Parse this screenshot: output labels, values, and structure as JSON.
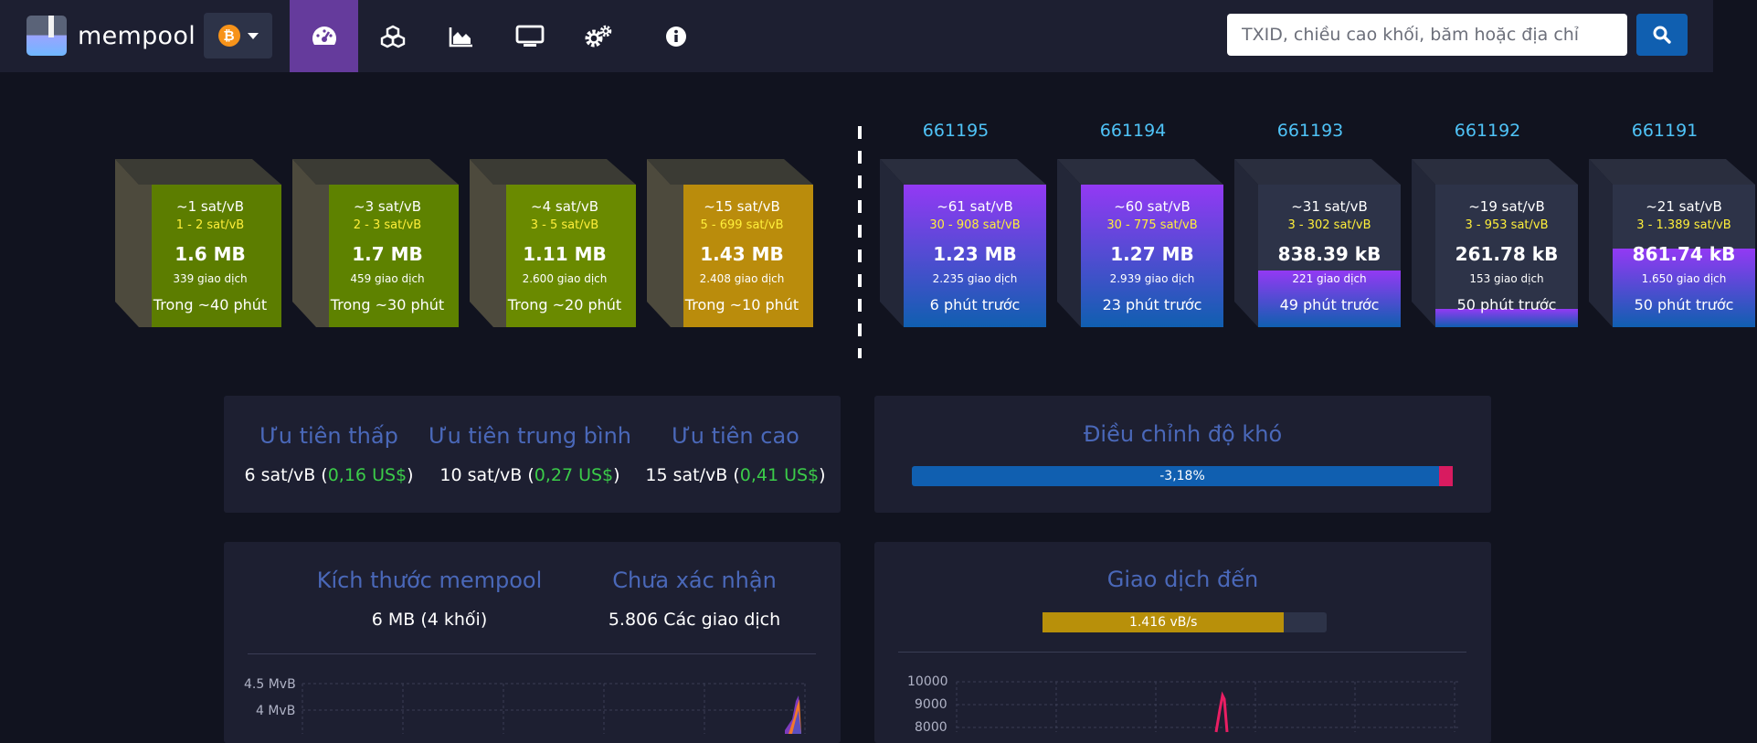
{
  "nav": {
    "logo_text": "mempool",
    "network_symbol": "₿",
    "items": [
      {
        "icon": "tachometer-icon",
        "active": true
      },
      {
        "icon": "cubes-icon",
        "active": false
      },
      {
        "icon": "area-chart-icon",
        "active": false
      },
      {
        "icon": "tv-icon",
        "active": false
      },
      {
        "icon": "cogs-icon",
        "active": false
      },
      {
        "icon": "info-circle-icon",
        "active": false
      }
    ],
    "search_placeholder": "TXID, chiều cao khối, băm hoặc địa chỉ"
  },
  "mempool_blocks": [
    {
      "fee": "~1 sat/vB",
      "range": "1 - 2 sat/vB",
      "size": "1.6 MB",
      "tx": "339 giao dịch",
      "eta": "Trong ~40 phút",
      "color": "#5c7d00",
      "fill_fraction": 1.0
    },
    {
      "fee": "~3 sat/vB",
      "range": "2 - 3 sat/vB",
      "size": "1.7 MB",
      "tx": "459 giao dịch",
      "eta": "Trong ~30 phút",
      "color": "#5e8200",
      "fill_fraction": 1.0
    },
    {
      "fee": "~4 sat/vB",
      "range": "3 - 5 sat/vB",
      "size": "1.11 MB",
      "tx": "2.600 giao dịch",
      "eta": "Trong ~20 phút",
      "color": "#6a8a00",
      "fill_fraction": 1.0
    },
    {
      "fee": "~15 sat/vB",
      "range": "5 - 699 sat/vB",
      "size": "1.43 MB",
      "tx": "2.408 giao dịch",
      "eta": "Trong ~10 phút",
      "color": "#ba8c0c",
      "fill_fraction": 1.0
    }
  ],
  "blocks": [
    {
      "height": "661195",
      "fee": "~61 sat/vB",
      "range": "30 - 908 sat/vB",
      "size": "1.23 MB",
      "tx": "2.235 giao dịch",
      "age": "6 phút trước",
      "fill_fraction": 1.0
    },
    {
      "height": "661194",
      "fee": "~60 sat/vB",
      "range": "30 - 775 sat/vB",
      "size": "1.27 MB",
      "tx": "2.939 giao dịch",
      "age": "23 phút trước",
      "fill_fraction": 1.0
    },
    {
      "height": "661193",
      "fee": "~31 sat/vB",
      "range": "3 - 302 sat/vB",
      "size": "838.39 kB",
      "tx": "221 giao dịch",
      "age": "49 phút trước",
      "fill_fraction": 0.4
    },
    {
      "height": "661192",
      "fee": "~19 sat/vB",
      "range": "3 - 953 sat/vB",
      "size": "261.78 kB",
      "tx": "153 giao dịch",
      "age": "50 phút trước",
      "fill_fraction": 0.13
    },
    {
      "height": "661191",
      "fee": "~21 sat/vB",
      "range": "3 - 1.389 sat/vB",
      "size": "861.74 kB",
      "tx": "1.650 giao dịch",
      "age": "50 phút trước",
      "fill_fraction": 0.55
    }
  ],
  "fees": {
    "low": {
      "title": "Ưu tiên thấp",
      "sat": "6 sat/vB (",
      "usd": "0,16 US$",
      "close": ")"
    },
    "mid": {
      "title": "Ưu tiên trung bình",
      "sat": "10 sat/vB (",
      "usd": "0,27 US$",
      "close": ")"
    },
    "high": {
      "title": "Ưu tiên cao",
      "sat": "15 sat/vB (",
      "usd": "0,41 US$",
      "close": ")"
    }
  },
  "difficulty": {
    "title": "Điều chỉnh độ khó",
    "label": "-3,18%"
  },
  "mempool_stats": {
    "size_title": "Kích thước mempool",
    "size_value": "6 MB (4 khối)",
    "unconfirmed_title": "Chưa xác nhận",
    "unconfirmed_value": "5.806 Các giao dịch",
    "y_ticks": [
      "4.5 MvB",
      "4 MvB"
    ]
  },
  "incoming": {
    "title": "Giao dịch đến",
    "rate_label": "1.416 vB/s",
    "rate_fraction": 0.85,
    "y_ticks": [
      "10000",
      "9000",
      "8000"
    ]
  }
}
